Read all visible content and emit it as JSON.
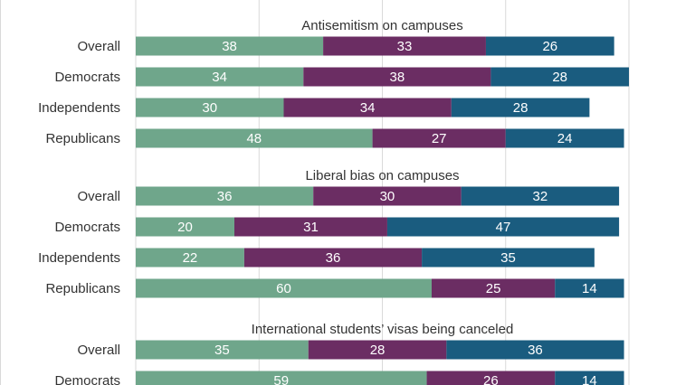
{
  "colors": {
    "seg1": "#6fa68b",
    "seg2": "#6b2d63",
    "seg3": "#1a5c7f"
  },
  "chart_data": {
    "type": "bar",
    "orientation": "horizontal",
    "stacked": true,
    "xlim": [
      0,
      100
    ],
    "grid": true,
    "legend": "none",
    "groups": [
      {
        "title": "Antisemitism on campuses",
        "rows": [
          {
            "label": "Overall",
            "values": [
              38,
              33,
              26
            ]
          },
          {
            "label": "Democrats",
            "values": [
              34,
              38,
              28
            ]
          },
          {
            "label": "Independents",
            "values": [
              30,
              34,
              28
            ]
          },
          {
            "label": "Republicans",
            "values": [
              48,
              27,
              24
            ]
          }
        ]
      },
      {
        "title": "Liberal bias on campuses",
        "rows": [
          {
            "label": "Overall",
            "values": [
              36,
              30,
              32
            ]
          },
          {
            "label": "Democrats",
            "values": [
              20,
              31,
              47
            ]
          },
          {
            "label": "Independents",
            "values": [
              22,
              36,
              35
            ]
          },
          {
            "label": "Republicans",
            "values": [
              60,
              25,
              14
            ]
          }
        ]
      },
      {
        "title": "International students’ visas being canceled",
        "rows": [
          {
            "label": "Overall",
            "values": [
              35,
              28,
              36
            ]
          },
          {
            "label": "Democrats",
            "values": [
              59,
              26,
              14
            ]
          }
        ]
      }
    ]
  }
}
